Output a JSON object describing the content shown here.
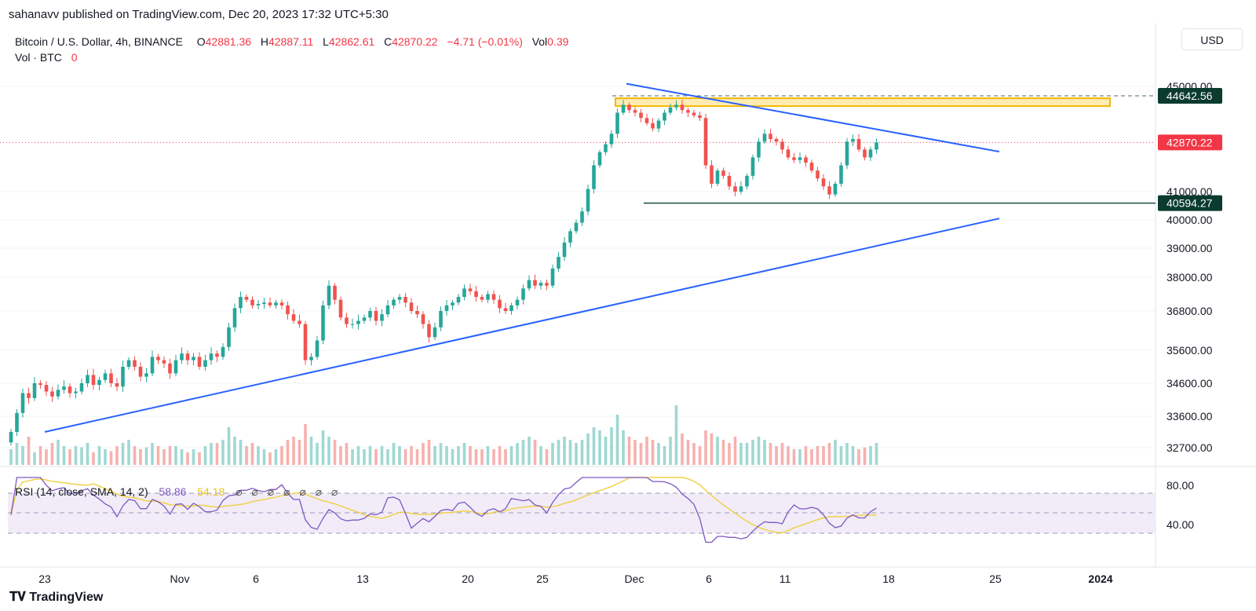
{
  "publisher": "sahanavv published on TradingView.com, Dec 20, 2023 17:32 UTC+5:30",
  "legend": {
    "symbol": "Bitcoin / U.S. Dollar, 4h, BINANCE",
    "o_label": "O",
    "o_value": "42881.36",
    "h_label": "H",
    "h_value": "42887.11",
    "l_label": "L",
    "l_value": "42862.61",
    "c_label": "C",
    "c_value": "42870.22",
    "change": "−4.71 (−0.01%)",
    "vol_label": "Vol",
    "vol_value": "0.39",
    "vol_line_label": "Vol · BTC",
    "vol_line_value": "0"
  },
  "currency": "USD",
  "rsi_legend": {
    "label": "RSI (14, close, SMA, 14, 2)",
    "rsi_value": "58.86",
    "sma_value": "54.18",
    "icons": "⌀ ⌀ ⌀ ⌀ ⌀ ⌀ ⌀"
  },
  "brand": "TradingView",
  "colors": {
    "up": "#26a69a",
    "down": "#ef5350",
    "trendline": "#2962ff",
    "zone_fill": "#ffe082",
    "zone_border": "#f5b800",
    "support": "#1e4d3f",
    "rsi": "#7e57c2",
    "rsi_sma": "#f0d24a",
    "price_tag": "#f23645",
    "level_tag": "#0b3b2e"
  },
  "chart_data": {
    "type": "candlestick",
    "price_axis_ticks": [
      "45000.00",
      "44642.56",
      "42870.22",
      "41000.00",
      "40594.27",
      "40000.00",
      "39000.00",
      "38000.00",
      "36800.00",
      "35600.00",
      "34600.00",
      "33600.00",
      "32700.00"
    ],
    "price_axis_values": [
      45000,
      41000,
      40000,
      39000,
      38000,
      36800,
      35600,
      34600,
      33600,
      32700
    ],
    "rsi_axis_ticks": [
      "80.00",
      "40.00"
    ],
    "x_tick_labels": [
      "23",
      "Nov",
      "6",
      "13",
      "20",
      "25",
      "Dec",
      "6",
      "11",
      "18",
      "25",
      "2024"
    ],
    "last_price": "42870.22",
    "resistance_level": "44642.56",
    "support_level": "40594.27",
    "supply_zone": [
      44250,
      44550
    ],
    "descending_trendline": [
      {
        "x": "Dec 1",
        "y": 45100
      },
      {
        "x": "Dec 26",
        "y": 42520
      }
    ],
    "ascending_trendline": [
      {
        "x": "Oct 23",
        "y": 33150
      },
      {
        "x": "Dec 26",
        "y": 40050
      }
    ],
    "closes": [
      33150,
      33700,
      34300,
      34150,
      34600,
      34550,
      34350,
      34200,
      34400,
      34500,
      34300,
      34350,
      34600,
      34850,
      34550,
      34700,
      34900,
      34600,
      34500,
      35100,
      35300,
      35100,
      34800,
      34900,
      35400,
      35300,
      35200,
      34900,
      35300,
      35500,
      35300,
      35400,
      35100,
      35300,
      35500,
      35400,
      35700,
      36300,
      36900,
      37300,
      37200,
      37000,
      37050,
      37100,
      37000,
      37100,
      37000,
      36700,
      36500,
      36400,
      35300,
      35400,
      35900,
      37000,
      37700,
      37200,
      36600,
      36400,
      36400,
      36500,
      36600,
      36800,
      36500,
      36700,
      37000,
      37200,
      37300,
      37100,
      36800,
      36700,
      36400,
      36000,
      36300,
      36800,
      37000,
      37100,
      37300,
      37600,
      37500,
      37300,
      37200,
      37400,
      37200,
      36900,
      36800,
      37000,
      37200,
      37600,
      37900,
      37700,
      37800,
      37700,
      38300,
      38700,
      39200,
      39600,
      39900,
      40300,
      41100,
      42000,
      42500,
      42800,
      43200,
      44000,
      44300,
      44100,
      44000,
      43800,
      43600,
      43400,
      43700,
      44000,
      44200,
      44300,
      44100,
      44000,
      43900,
      43800,
      42000,
      41300,
      41800,
      41600,
      41200,
      41000,
      41200,
      41600,
      42300,
      42900,
      43200,
      43000,
      42900,
      42600,
      42300,
      42200,
      42300,
      42100,
      41800,
      41500,
      41200,
      40900,
      41300,
      42000,
      42900,
      43000,
      42600,
      42300,
      42600,
      42870.22
    ],
    "volumes": [
      25,
      35,
      30,
      45,
      20,
      30,
      25,
      35,
      40,
      30,
      25,
      30,
      28,
      35,
      20,
      30,
      25,
      22,
      30,
      35,
      40,
      30,
      25,
      28,
      35,
      30,
      25,
      30,
      30,
      25,
      20,
      25,
      20,
      30,
      35,
      35,
      40,
      60,
      45,
      40,
      30,
      35,
      30,
      25,
      20,
      25,
      30,
      40,
      45,
      40,
      65,
      45,
      35,
      55,
      45,
      40,
      30,
      35,
      25,
      30,
      25,
      30,
      25,
      30,
      25,
      35,
      30,
      25,
      30,
      25,
      35,
      40,
      30,
      35,
      30,
      25,
      30,
      35,
      30,
      25,
      25,
      30,
      25,
      30,
      25,
      30,
      35,
      40,
      45,
      40,
      30,
      25,
      35,
      40,
      45,
      40,
      35,
      40,
      50,
      60,
      55,
      45,
      60,
      80,
      55,
      45,
      40,
      35,
      45,
      40,
      35,
      30,
      45,
      95,
      50,
      40,
      35,
      30,
      55,
      50,
      45,
      40,
      35,
      45,
      35,
      35,
      40,
      45,
      40,
      35,
      30,
      35,
      30,
      25,
      25,
      30,
      25,
      30,
      30,
      35,
      40,
      30,
      35,
      30,
      25,
      28,
      30,
      35
    ]
  }
}
